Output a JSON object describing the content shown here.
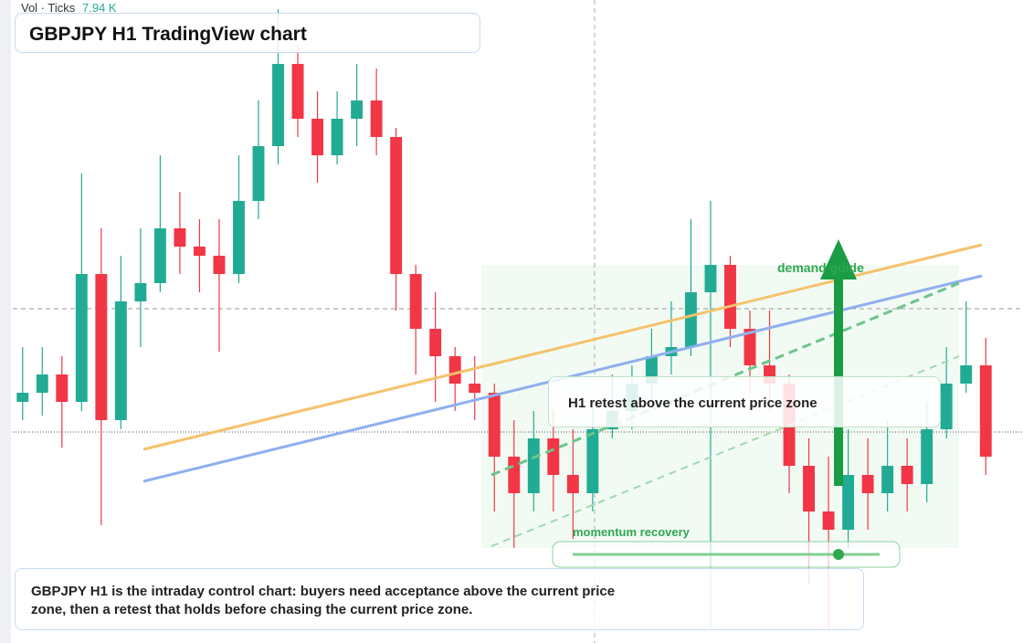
{
  "header": {
    "vol_label": "Vol · Ticks",
    "vol_value": "7.94 K",
    "title": "GBPJPY H1 TradingView chart"
  },
  "annotations": {
    "zone": "demand guide",
    "callout": "H1 retest above the current price zone",
    "momentum": "momentum recovery",
    "note": "GBPJPY H1 is the intraday control chart: buyers need acceptance above the current price zone, then a retest that holds before chasing the current price zone."
  },
  "chart_data": {
    "type": "candlestick",
    "ylim": [
      190,
      197.04
    ],
    "up_color": "#22ab94",
    "down_color": "#f23645",
    "open": [
      192.64,
      192.74,
      192.94,
      192.64,
      194.04,
      192.44,
      193.74,
      193.94,
      194.54,
      194.34,
      194.24,
      194.04,
      194.84,
      195.44,
      196.34,
      195.74,
      195.34,
      195.74,
      195.94,
      195.54,
      194.04,
      193.44,
      193.14,
      192.84,
      192.74,
      192.04,
      191.64,
      192.24,
      191.84,
      191.64,
      192.34,
      192.54,
      192.84,
      193.14,
      193.24,
      193.84,
      194.14,
      193.44,
      193.04,
      192.84,
      191.94,
      191.44,
      191.24,
      191.84,
      191.64,
      191.94,
      191.74,
      192.34,
      192.84,
      193.04
    ],
    "high": [
      193.24,
      193.24,
      193.14,
      195.14,
      194.54,
      194.24,
      194.54,
      195.34,
      194.94,
      194.64,
      194.64,
      195.34,
      195.94,
      196.94,
      196.54,
      196.04,
      196.04,
      196.34,
      196.29,
      195.64,
      194.14,
      193.84,
      193.24,
      193.14,
      192.84,
      192.44,
      192.54,
      192.54,
      192.34,
      192.64,
      192.94,
      193.04,
      193.44,
      193.74,
      194.64,
      194.84,
      194.24,
      193.64,
      193.64,
      192.94,
      192.24,
      192.04,
      192.34,
      192.24,
      192.44,
      192.24,
      192.64,
      193.24,
      193.74,
      193.34
    ],
    "low": [
      192.44,
      192.49,
      192.14,
      192.54,
      191.29,
      192.34,
      193.24,
      193.84,
      194.04,
      193.84,
      193.19,
      193.94,
      194.64,
      195.24,
      195.54,
      195.04,
      195.24,
      195.44,
      195.34,
      193.64,
      192.94,
      192.64,
      192.54,
      192.44,
      191.44,
      191.04,
      191.44,
      191.44,
      191.14,
      191.44,
      192.24,
      192.34,
      192.64,
      192.94,
      193.14,
      190.14,
      193.24,
      192.74,
      192.54,
      191.64,
      190.64,
      190.14,
      191.04,
      191.24,
      191.44,
      191.44,
      191.54,
      192.24,
      192.74,
      191.84
    ],
    "close": [
      192.74,
      192.94,
      192.64,
      194.04,
      192.44,
      193.74,
      193.94,
      194.54,
      194.34,
      194.24,
      194.04,
      194.84,
      195.44,
      196.34,
      195.74,
      195.34,
      195.74,
      195.94,
      195.54,
      194.04,
      193.44,
      193.14,
      192.84,
      192.74,
      192.04,
      191.64,
      192.24,
      191.84,
      191.64,
      192.34,
      192.54,
      192.84,
      193.14,
      193.24,
      193.84,
      194.14,
      193.44,
      193.04,
      192.84,
      191.94,
      191.44,
      191.24,
      191.84,
      191.64,
      191.94,
      191.74,
      192.34,
      192.84,
      193.04,
      192.04
    ]
  }
}
